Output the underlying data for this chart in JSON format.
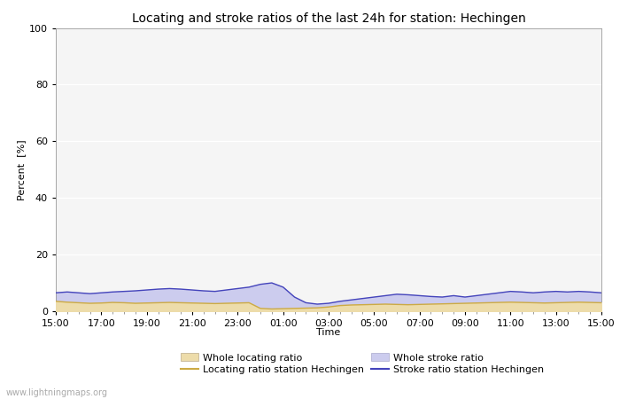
{
  "title": "Locating and stroke ratios of the last 24h for station: Hechingen",
  "ylabel": "Percent  [%]",
  "xlabel": "Time",
  "xlim": [
    0,
    24
  ],
  "ylim": [
    0,
    100
  ],
  "yticks": [
    0,
    20,
    40,
    60,
    80,
    100
  ],
  "xtick_labels": [
    "15:00",
    "17:00",
    "19:00",
    "21:00",
    "23:00",
    "01:00",
    "03:00",
    "05:00",
    "07:00",
    "09:00",
    "11:00",
    "13:00",
    "15:00"
  ],
  "bg_color": "#ffffff",
  "plot_bg_color": "#f5f5f5",
  "grid_color": "#ffffff",
  "watermark": "www.lightningmaps.org",
  "whole_locating_fill_color": "#eddcaa",
  "whole_stroke_fill_color": "#ccccee",
  "locating_line_color": "#ccaa44",
  "stroke_line_color": "#4444bb",
  "whole_locating_values": [
    3.5,
    3.2,
    3.0,
    2.8,
    2.9,
    3.1,
    3.0,
    2.8,
    2.9,
    3.0,
    3.1,
    3.0,
    2.9,
    2.8,
    2.7,
    2.8,
    2.9,
    3.0,
    1.0,
    0.8,
    0.9,
    1.0,
    1.1,
    1.2,
    1.5,
    2.0,
    2.2,
    2.3,
    2.4,
    2.5,
    2.4,
    2.3,
    2.4,
    2.5,
    2.6,
    2.7,
    2.8,
    2.9,
    3.0,
    3.1,
    3.2,
    3.1,
    3.0,
    2.9,
    3.0,
    3.1,
    3.2,
    3.1,
    3.0
  ],
  "whole_stroke_values": [
    6.5,
    6.8,
    6.5,
    6.2,
    6.5,
    6.8,
    7.0,
    7.2,
    7.5,
    7.8,
    8.0,
    7.8,
    7.5,
    7.2,
    7.0,
    7.5,
    8.0,
    8.5,
    9.5,
    10.0,
    8.5,
    5.0,
    3.0,
    2.5,
    2.8,
    3.5,
    4.0,
    4.5,
    5.0,
    5.5,
    6.0,
    5.8,
    5.5,
    5.2,
    5.0,
    5.5,
    5.0,
    5.5,
    6.0,
    6.5,
    7.0,
    6.8,
    6.5,
    6.8,
    7.0,
    6.8,
    7.0,
    6.8,
    6.5
  ],
  "locating_line_values": [
    3.5,
    3.2,
    3.0,
    2.8,
    2.9,
    3.1,
    3.0,
    2.8,
    2.9,
    3.0,
    3.1,
    3.0,
    2.9,
    2.8,
    2.7,
    2.8,
    2.9,
    3.0,
    1.0,
    0.8,
    0.9,
    1.0,
    1.1,
    1.2,
    1.5,
    2.0,
    2.2,
    2.3,
    2.4,
    2.5,
    2.4,
    2.3,
    2.4,
    2.5,
    2.6,
    2.7,
    2.8,
    2.9,
    3.0,
    3.1,
    3.2,
    3.1,
    3.0,
    2.9,
    3.0,
    3.1,
    3.2,
    3.1,
    3.0
  ],
  "stroke_line_values": [
    6.5,
    6.8,
    6.5,
    6.2,
    6.5,
    6.8,
    7.0,
    7.2,
    7.5,
    7.8,
    8.0,
    7.8,
    7.5,
    7.2,
    7.0,
    7.5,
    8.0,
    8.5,
    9.5,
    10.0,
    8.5,
    5.0,
    3.0,
    2.5,
    2.8,
    3.5,
    4.0,
    4.5,
    5.0,
    5.5,
    6.0,
    5.8,
    5.5,
    5.2,
    5.0,
    5.5,
    5.0,
    5.5,
    6.0,
    6.5,
    7.0,
    6.8,
    6.5,
    6.8,
    7.0,
    6.8,
    7.0,
    6.8,
    6.5
  ],
  "n_points": 49
}
